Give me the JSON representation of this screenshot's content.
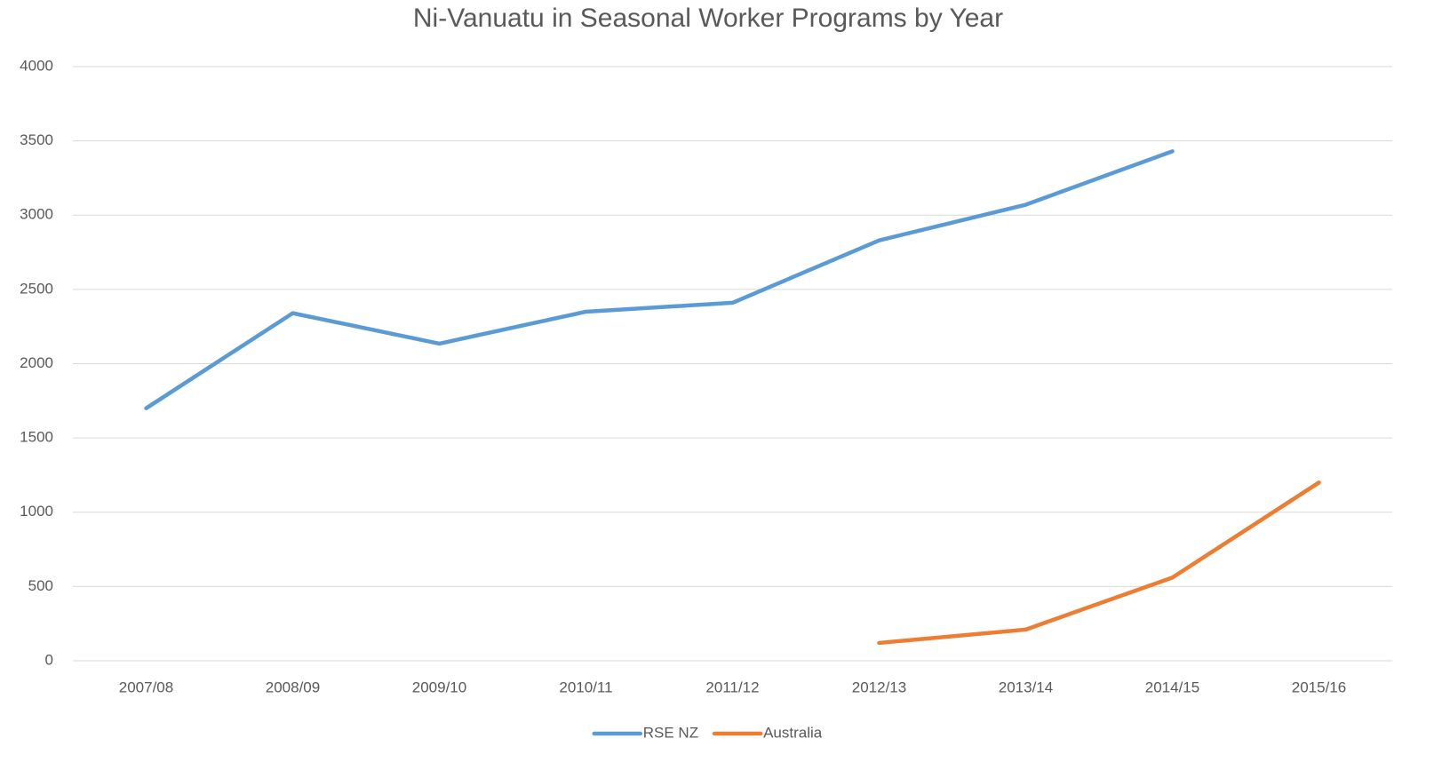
{
  "chart_data": {
    "type": "line",
    "title": "Ni-Vanuatu in Seasonal Worker Programs by Year",
    "categories": [
      "2007/08",
      "2008/09",
      "2009/10",
      "2010/11",
      "2011/12",
      "2012/13",
      "2013/14",
      "2014/15",
      "2015/16"
    ],
    "series": [
      {
        "name": "RSE NZ",
        "color": "#5b9bd5",
        "values": [
          1700,
          2340,
          2135,
          2350,
          2410,
          2830,
          3070,
          3430,
          null
        ]
      },
      {
        "name": "Australia",
        "color": "#ed7d31",
        "values": [
          null,
          null,
          null,
          null,
          null,
          120,
          210,
          560,
          1200
        ]
      }
    ],
    "ylim": [
      0,
      4000
    ],
    "yticks": [
      0,
      500,
      1000,
      1500,
      2000,
      2500,
      3000,
      3500,
      4000
    ],
    "grid": true,
    "legend": "bottom"
  }
}
